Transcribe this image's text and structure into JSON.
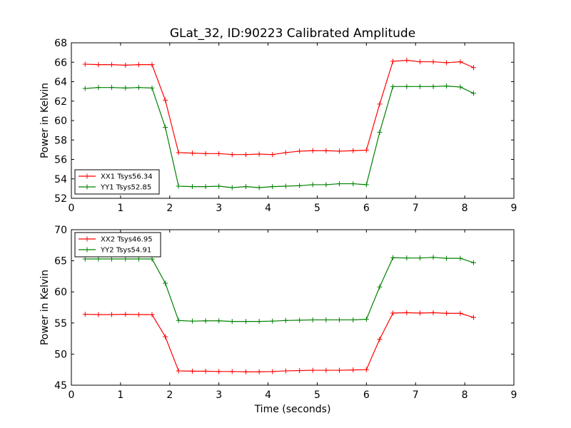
{
  "figure": {
    "title": "GLat_32, ID:90223 Calibrated Amplitude",
    "xlabel": "Time (seconds)"
  },
  "chart_data": [
    {
      "type": "line",
      "title": "GLat_32, ID:90223 Calibrated Amplitude",
      "xlabel": "",
      "ylabel": "Power in Kelvin",
      "xlim": [
        0,
        9
      ],
      "ylim": [
        52,
        68
      ],
      "xticks": [
        0,
        1,
        2,
        3,
        4,
        5,
        6,
        7,
        8,
        9
      ],
      "yticks": [
        52,
        54,
        56,
        58,
        60,
        62,
        64,
        66,
        68
      ],
      "grid": false,
      "legend_position": "lower-left",
      "x": [
        0.28,
        0.55,
        0.82,
        1.1,
        1.37,
        1.64,
        1.91,
        2.18,
        2.46,
        2.73,
        3.0,
        3.27,
        3.55,
        3.82,
        4.09,
        4.36,
        4.64,
        4.91,
        5.18,
        5.45,
        5.73,
        6.0,
        6.27,
        6.54,
        6.82,
        7.09,
        7.36,
        7.63,
        7.91,
        8.18
      ],
      "series": [
        {
          "name": "XX1 Tsys56.34",
          "color": "#ff0000",
          "x": [
            0.28,
            0.55,
            0.82,
            1.1,
            1.37,
            1.64,
            1.91,
            2.18,
            2.46,
            2.73,
            3.0,
            3.27,
            3.55,
            3.82,
            4.09,
            4.36,
            4.64,
            4.91,
            5.18,
            5.45,
            5.73,
            6.0,
            6.27,
            6.54,
            6.82,
            7.09,
            7.36,
            7.63,
            7.91,
            8.18
          ],
          "values": [
            65.8,
            65.75,
            65.75,
            65.7,
            65.75,
            65.75,
            62.1,
            56.7,
            56.65,
            56.6,
            56.6,
            56.5,
            56.5,
            56.55,
            56.5,
            56.7,
            56.85,
            56.9,
            56.9,
            56.85,
            56.9,
            56.95,
            61.7,
            66.1,
            66.2,
            66.05,
            66.05,
            65.95,
            66.05,
            65.45
          ]
        },
        {
          "name": "YY1 Tsys52.85",
          "color": "#008000",
          "x": [
            0.28,
            0.55,
            0.82,
            1.1,
            1.37,
            1.64,
            1.91,
            2.18,
            2.46,
            2.73,
            3.0,
            3.27,
            3.55,
            3.82,
            4.09,
            4.36,
            4.64,
            4.91,
            5.18,
            5.45,
            5.73,
            6.0,
            6.27,
            6.54,
            6.82,
            7.09,
            7.36,
            7.63,
            7.91,
            8.18
          ],
          "values": [
            63.3,
            63.4,
            63.4,
            63.35,
            63.4,
            63.35,
            59.3,
            53.25,
            53.2,
            53.2,
            53.25,
            53.1,
            53.2,
            53.1,
            53.2,
            53.25,
            53.3,
            53.4,
            53.4,
            53.5,
            53.5,
            53.4,
            58.8,
            63.5,
            63.5,
            63.5,
            63.5,
            63.55,
            63.45,
            62.8
          ]
        }
      ]
    },
    {
      "type": "line",
      "title": "",
      "xlabel": "Time (seconds)",
      "ylabel": "Power in Kelvin",
      "xlim": [
        0,
        9
      ],
      "ylim": [
        45,
        70
      ],
      "xticks": [
        0,
        1,
        2,
        3,
        4,
        5,
        6,
        7,
        8,
        9
      ],
      "yticks": [
        45,
        50,
        55,
        60,
        65,
        70
      ],
      "grid": false,
      "legend_position": "top-left",
      "series": [
        {
          "name": "XX2 Tsys46.95",
          "color": "#ff0000",
          "x": [
            0.28,
            0.55,
            0.82,
            1.1,
            1.37,
            1.64,
            1.91,
            2.18,
            2.46,
            2.73,
            3.0,
            3.27,
            3.55,
            3.82,
            4.09,
            4.36,
            4.64,
            4.91,
            5.18,
            5.45,
            5.73,
            6.0,
            6.27,
            6.54,
            6.82,
            7.09,
            7.36,
            7.63,
            7.91,
            8.18
          ],
          "values": [
            56.4,
            56.35,
            56.35,
            56.4,
            56.35,
            56.35,
            52.8,
            47.3,
            47.25,
            47.25,
            47.2,
            47.2,
            47.15,
            47.15,
            47.2,
            47.3,
            47.35,
            47.4,
            47.4,
            47.4,
            47.45,
            47.5,
            52.4,
            56.6,
            56.65,
            56.6,
            56.65,
            56.55,
            56.55,
            55.9
          ]
        },
        {
          "name": "YY2 Tsys54.91",
          "color": "#008000",
          "x": [
            0.28,
            0.55,
            0.82,
            1.1,
            1.37,
            1.64,
            1.91,
            2.18,
            2.46,
            2.73,
            3.0,
            3.27,
            3.55,
            3.82,
            4.09,
            4.36,
            4.64,
            4.91,
            5.18,
            5.45,
            5.73,
            6.0,
            6.27,
            6.54,
            6.82,
            7.09,
            7.36,
            7.63,
            7.91,
            8.18
          ],
          "values": [
            65.3,
            65.3,
            65.3,
            65.3,
            65.3,
            65.3,
            61.4,
            55.4,
            55.3,
            55.35,
            55.35,
            55.25,
            55.25,
            55.25,
            55.3,
            55.4,
            55.45,
            55.5,
            55.5,
            55.5,
            55.5,
            55.6,
            60.8,
            65.5,
            65.45,
            65.45,
            65.55,
            65.4,
            65.4,
            64.7
          ]
        }
      ]
    }
  ]
}
